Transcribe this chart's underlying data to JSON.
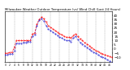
{
  "title": "Milwaukee Weather Outdoor Temperature (vs) Wind Chill (Last 24 Hours)",
  "temp_color": "#ff0000",
  "windchill_color": "#0000cc",
  "background_color": "#ffffff",
  "grid_color": "#888888",
  "ylim": [
    -15,
    45
  ],
  "xlim": [
    0,
    47
  ],
  "temp_values": [
    -5,
    -5,
    -4,
    -4,
    2,
    10,
    10,
    10,
    10,
    10,
    10,
    10,
    18,
    19,
    30,
    35,
    38,
    36,
    32,
    28,
    26,
    24,
    22,
    20,
    18,
    17,
    15,
    14,
    14,
    13,
    16,
    18,
    15,
    12,
    10,
    8,
    6,
    4,
    2,
    0,
    -2,
    -3,
    -5,
    -6,
    -7,
    -8,
    -9,
    -10
  ],
  "windchill_values": [
    -7,
    -7,
    -6,
    -6,
    -2,
    7,
    7,
    7,
    8,
    8,
    9,
    9,
    15,
    17,
    28,
    34,
    36,
    33,
    28,
    24,
    22,
    20,
    18,
    16,
    14,
    13,
    11,
    10,
    10,
    9,
    13,
    15,
    11,
    8,
    6,
    4,
    2,
    0,
    -2,
    -4,
    -5,
    -7,
    -9,
    -10,
    -11,
    -13,
    -14,
    -16
  ],
  "ytick_values": [
    -10,
    -5,
    0,
    5,
    10,
    15,
    20,
    25,
    30,
    35,
    40
  ],
  "ytick_fontsize": 3.0,
  "xtick_fontsize": 2.2,
  "title_fontsize": 2.8,
  "line_width": 0.5,
  "marker_size": 0.7,
  "grid_vlines": [
    0,
    4,
    8,
    12,
    16,
    20,
    24,
    28,
    32,
    36,
    40,
    44,
    47
  ],
  "xtick_step": 2
}
